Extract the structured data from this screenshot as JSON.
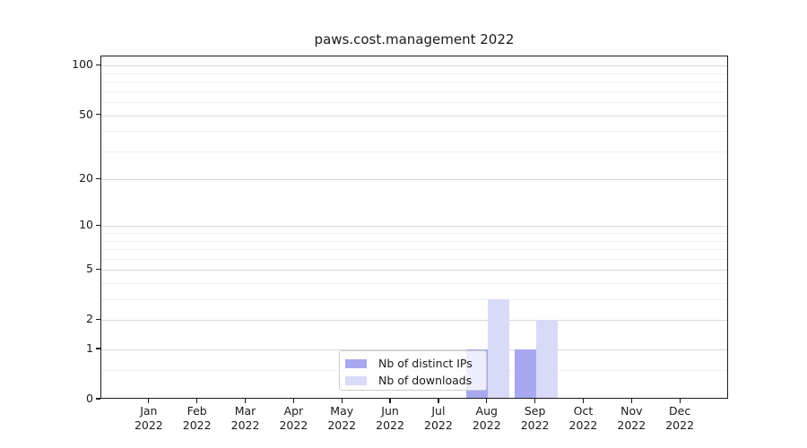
{
  "chart_data": {
    "type": "bar",
    "title": "paws.cost.management 2022",
    "categories": [
      "Jan",
      "Feb",
      "Mar",
      "Apr",
      "May",
      "Jun",
      "Jul",
      "Aug",
      "Sep",
      "Oct",
      "Nov",
      "Dec"
    ],
    "category_year": "2022",
    "series": [
      {
        "name": "Nb of distinct IPs",
        "color": "#a8a8f0",
        "values": [
          0,
          0,
          0,
          0,
          0,
          0,
          0,
          1,
          1,
          0,
          0,
          0
        ]
      },
      {
        "name": "Nb of downloads",
        "color": "#d9d9f8",
        "values": [
          0,
          0,
          0,
          0,
          0,
          0,
          0,
          3,
          2,
          0,
          0,
          0
        ]
      }
    ],
    "xlabel": "",
    "ylabel": "",
    "yscale": "log1p",
    "ylim": [
      0,
      114
    ],
    "yticks": [
      0,
      1,
      2,
      5,
      10,
      20,
      50,
      100
    ],
    "minor_gridlines": [
      0.5,
      3,
      4,
      6,
      7,
      8,
      9,
      30,
      40,
      60,
      70,
      80,
      90
    ],
    "grid": "horizontal",
    "legend": {
      "position": "lower center"
    },
    "colors": {
      "major_grid": "#d9d9d9",
      "minor_grid": "#efefef",
      "spine": "#1a1a1a",
      "text": "#1a1a1a"
    }
  }
}
